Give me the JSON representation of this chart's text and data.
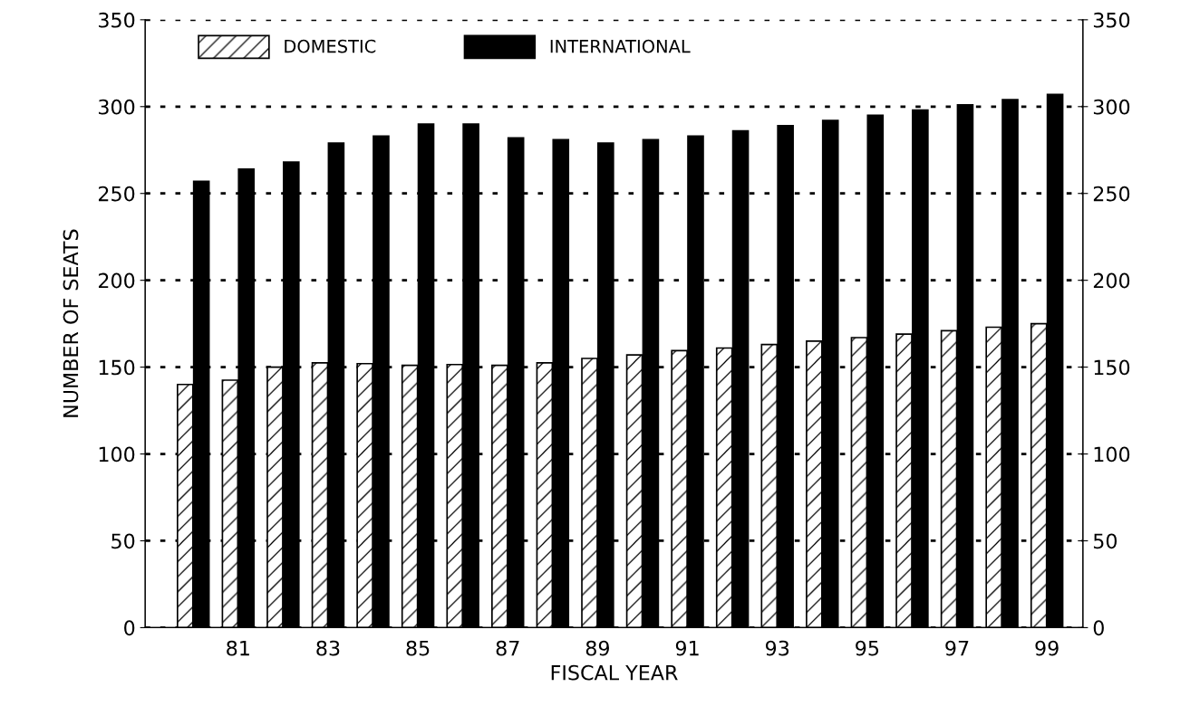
{
  "chart_data": {
    "type": "bar",
    "xlabel": "FISCAL YEAR",
    "ylabel": "NUMBER OF SEATS",
    "categories": [
      null,
      "81",
      null,
      "83",
      null,
      "85",
      null,
      "87",
      null,
      "89",
      null,
      "91",
      null,
      "93",
      null,
      "95",
      null,
      "97",
      null,
      "99"
    ],
    "series": [
      {
        "name": "DOMESTIC",
        "color": "#000000",
        "values": [
          140,
          142.5,
          150,
          152.5,
          152,
          151,
          151.5,
          151,
          152.5,
          155,
          157,
          159.5,
          161,
          163,
          165,
          167,
          169,
          171,
          173,
          175
        ]
      },
      {
        "name": "INTERNATIONAL",
        "color": "#000000",
        "values": [
          257,
          264,
          268,
          279,
          283,
          290,
          290,
          282,
          281,
          279,
          281,
          283,
          286,
          289,
          292,
          295,
          298,
          301,
          304,
          307
        ]
      }
    ],
    "ylim": [
      0,
      350
    ],
    "yticks": [
      0,
      50,
      100,
      150,
      200,
      250,
      300,
      350
    ],
    "y2lim": [
      0,
      350
    ],
    "y2ticks": [
      0,
      50,
      100,
      150,
      200,
      250,
      300,
      350
    ],
    "grid": "y",
    "legend": "top left"
  }
}
